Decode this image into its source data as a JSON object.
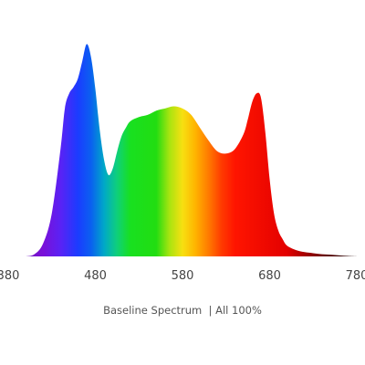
{
  "chart_data": {
    "type": "area",
    "title": "",
    "xlabel": "Baseline Spectrum  | All 100%",
    "ylabel": "",
    "xlim": [
      380,
      780
    ],
    "ylim": [
      0,
      1
    ],
    "grid": false,
    "x_ticks": [
      "380",
      "480",
      "580",
      "680",
      "780"
    ],
    "x": [
      380,
      390,
      400,
      410,
      420,
      430,
      440,
      445,
      450,
      455,
      460,
      465,
      470,
      475,
      480,
      485,
      490,
      495,
      500,
      505,
      510,
      515,
      520,
      530,
      540,
      550,
      560,
      570,
      580,
      590,
      600,
      610,
      620,
      630,
      640,
      650,
      655,
      660,
      665,
      670,
      675,
      680,
      685,
      690,
      695,
      700,
      710,
      720,
      730,
      740,
      750,
      760,
      770,
      780
    ],
    "series": [
      {
        "values": [
          0.0,
          0.0,
          0.0,
          0.01,
          0.06,
          0.2,
          0.5,
          0.69,
          0.76,
          0.79,
          0.83,
          0.91,
          0.99,
          0.93,
          0.78,
          0.59,
          0.45,
          0.38,
          0.41,
          0.49,
          0.56,
          0.6,
          0.63,
          0.65,
          0.66,
          0.68,
          0.69,
          0.7,
          0.69,
          0.66,
          0.6,
          0.54,
          0.49,
          0.48,
          0.5,
          0.57,
          0.64,
          0.72,
          0.76,
          0.74,
          0.58,
          0.36,
          0.2,
          0.12,
          0.08,
          0.05,
          0.03,
          0.02,
          0.015,
          0.01,
          0.008,
          0.005,
          0.002,
          0.0
        ]
      }
    ],
    "colors": {
      "spectrum_stops": [
        {
          "nm": 380,
          "color": "#6a1fa8"
        },
        {
          "nm": 420,
          "color": "#7a10d8"
        },
        {
          "nm": 440,
          "color": "#5a22f5"
        },
        {
          "nm": 460,
          "color": "#1b3cff"
        },
        {
          "nm": 475,
          "color": "#0a60f0"
        },
        {
          "nm": 490,
          "color": "#00a8c8"
        },
        {
          "nm": 505,
          "color": "#0fd07a"
        },
        {
          "nm": 520,
          "color": "#18e020"
        },
        {
          "nm": 550,
          "color": "#22dd11"
        },
        {
          "nm": 565,
          "color": "#a8e410"
        },
        {
          "nm": 580,
          "color": "#f7e011"
        },
        {
          "nm": 595,
          "color": "#ffb300"
        },
        {
          "nm": 610,
          "color": "#ff7a00"
        },
        {
          "nm": 625,
          "color": "#ff3a00"
        },
        {
          "nm": 640,
          "color": "#ff1500"
        },
        {
          "nm": 700,
          "color": "#e30000"
        },
        {
          "nm": 730,
          "color": "#8a0000"
        },
        {
          "nm": 760,
          "color": "#3a0000"
        },
        {
          "nm": 780,
          "color": "#1a0000"
        }
      ]
    }
  }
}
